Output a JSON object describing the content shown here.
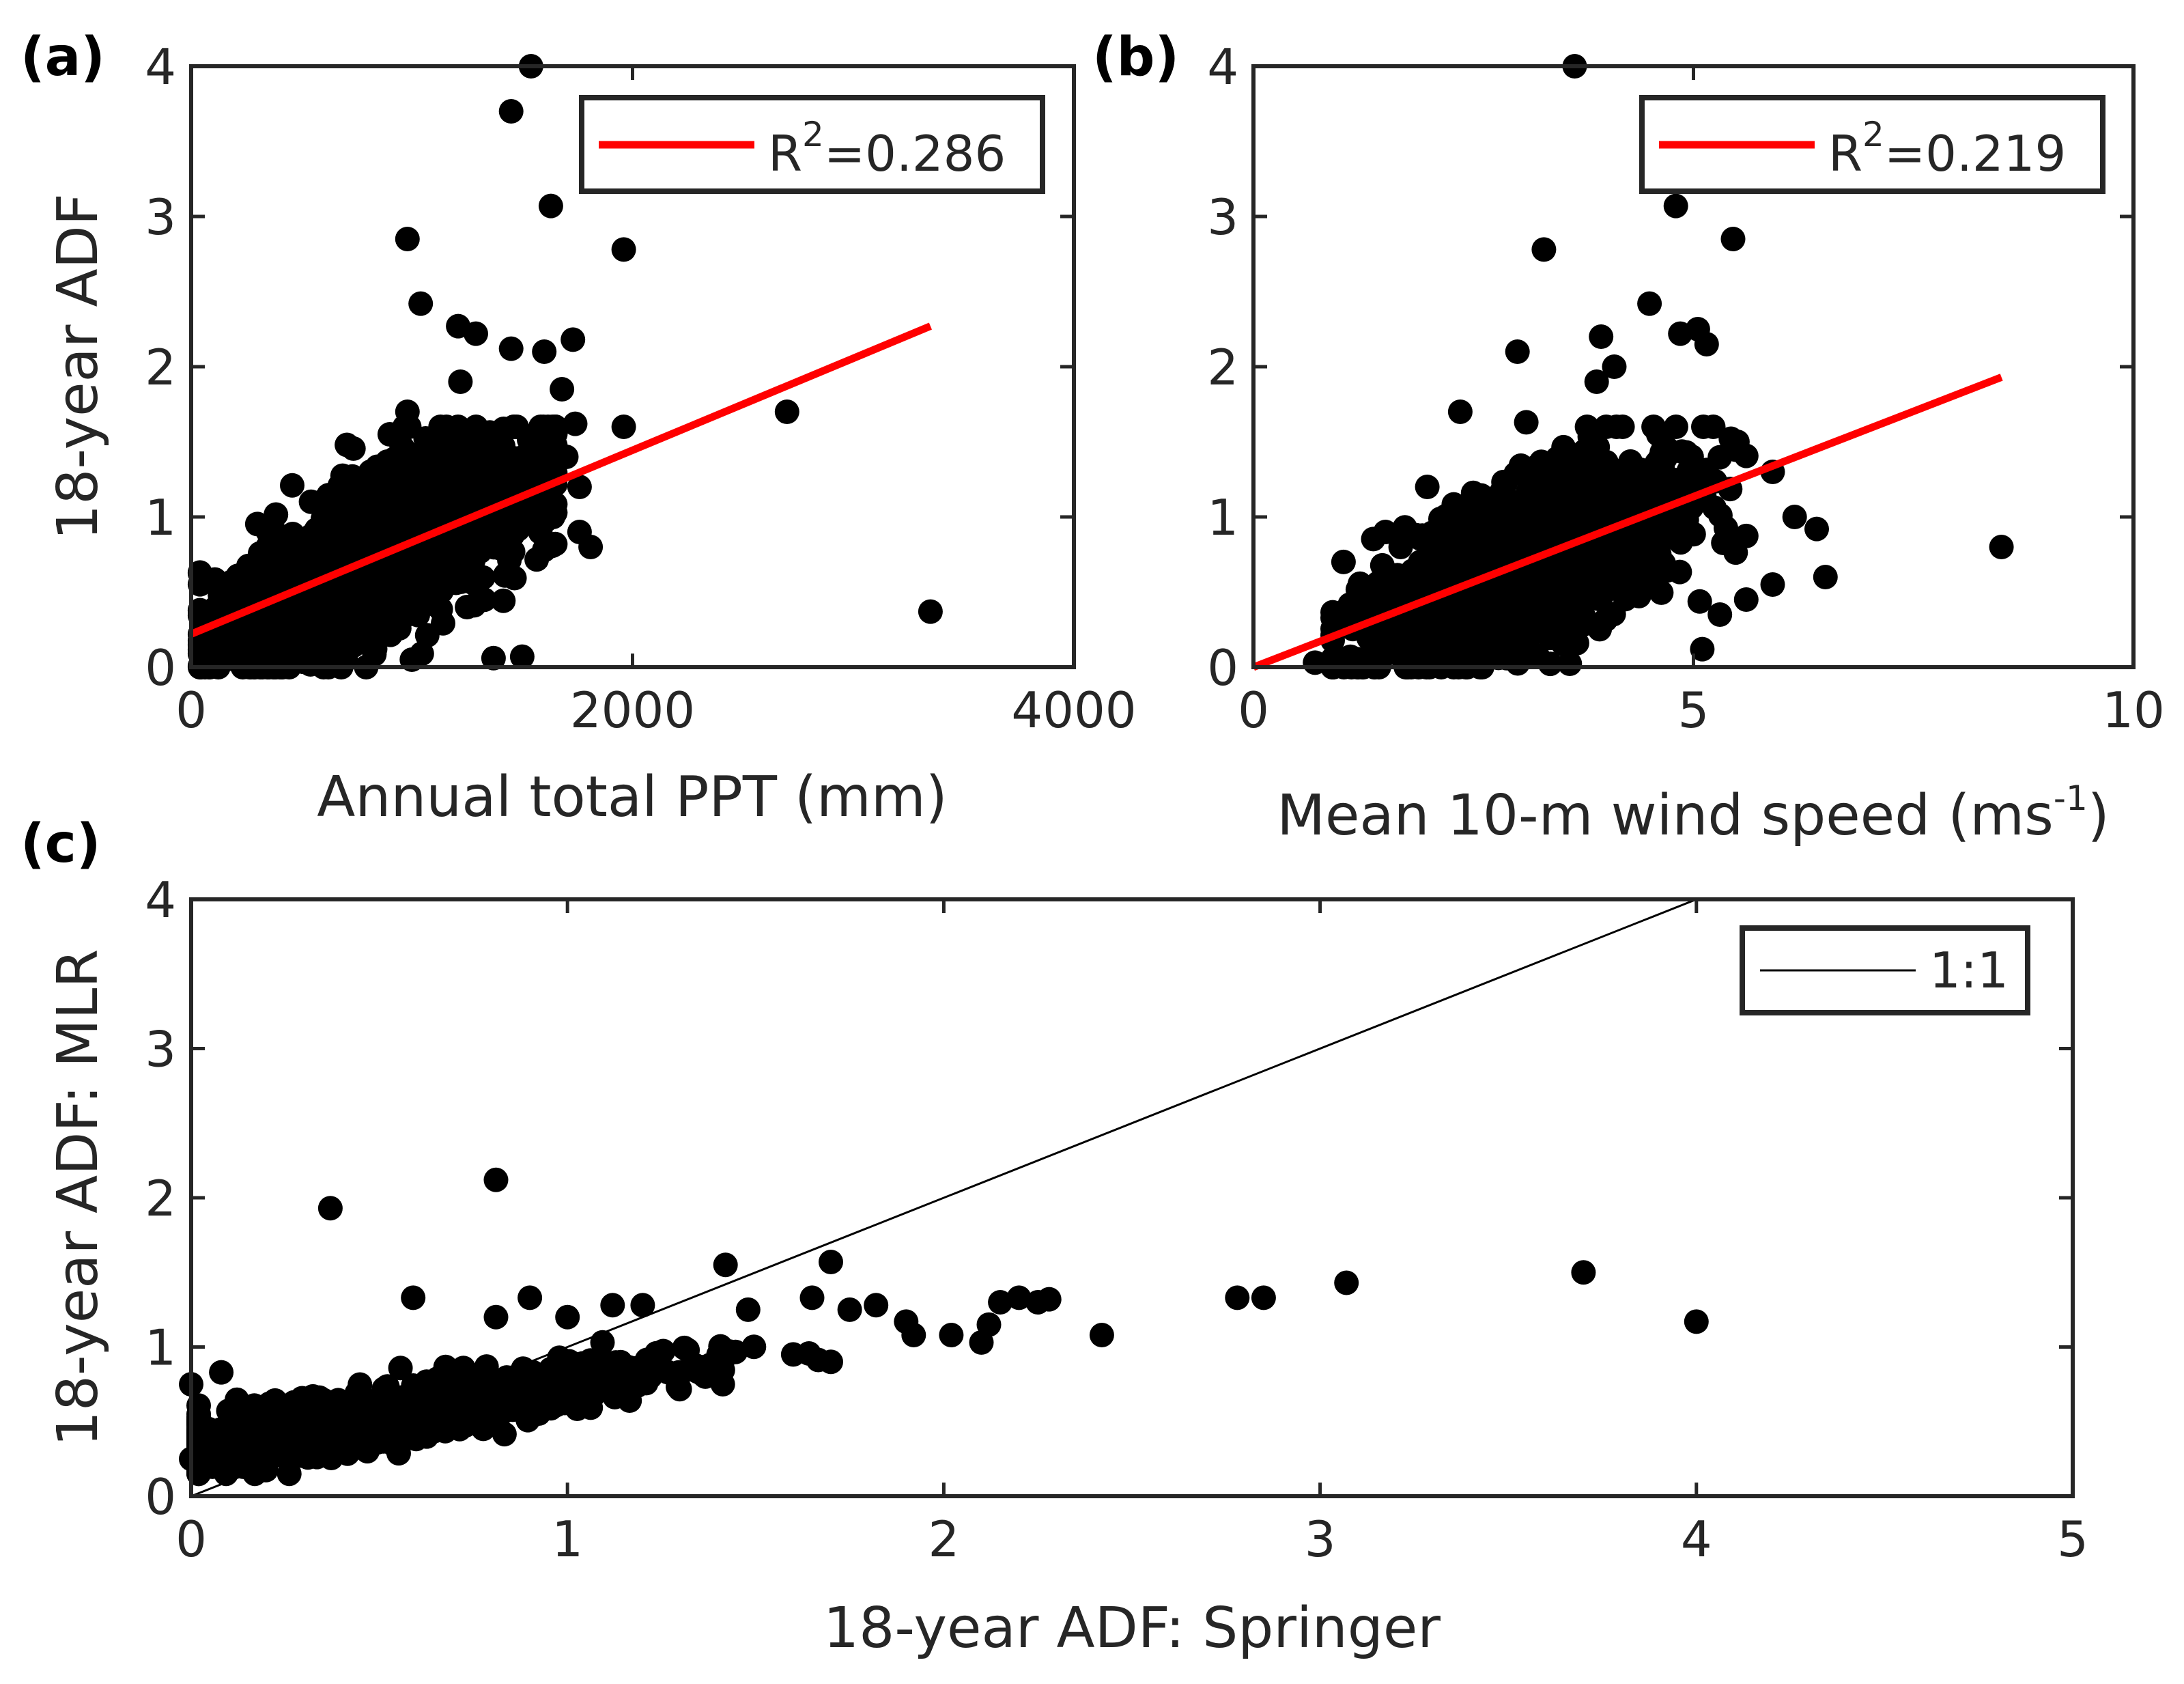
{
  "chart_data": [
    {
      "type": "scatter",
      "panel_label": "(a)",
      "xlabel": "Annual total PPT (mm)",
      "ylabel": "18-year ADF",
      "xlim": [
        0,
        4000
      ],
      "ylim": [
        0,
        4
      ],
      "xticks": [
        0,
        2000,
        4000
      ],
      "yticks": [
        0,
        1,
        2,
        3,
        4
      ],
      "legend": {
        "placement": "top-right",
        "entries": [
          {
            "label_base": "R",
            "label_sup": "2",
            "label_tail": "=0.286",
            "color": "#ff0000"
          }
        ]
      },
      "fit_line": {
        "color": "#ff0000",
        "x": [
          0,
          3350
        ],
        "y": [
          0.22,
          2.27
        ]
      },
      "point_color": "#000000",
      "points": [
        [
          1540,
          4.0
        ],
        [
          1450,
          3.7
        ],
        [
          1630,
          3.07
        ],
        [
          980,
          2.85
        ],
        [
          1960,
          2.78
        ],
        [
          1040,
          2.42
        ],
        [
          1210,
          2.27
        ],
        [
          1290,
          2.22
        ],
        [
          1450,
          2.12
        ],
        [
          1600,
          2.1
        ],
        [
          1730,
          2.18
        ],
        [
          1680,
          1.85
        ],
        [
          2700,
          1.7
        ],
        [
          1960,
          1.6
        ],
        [
          1740,
          1.62
        ],
        [
          1700,
          1.4
        ],
        [
          1760,
          1.2
        ],
        [
          1640,
          1.0
        ],
        [
          1760,
          0.9
        ],
        [
          1810,
          0.8
        ],
        [
          1600,
          0.78
        ],
        [
          3350,
          0.37
        ],
        [
          1500,
          0.07
        ],
        [
          1370,
          0.06
        ],
        [
          1000,
          0.05
        ],
        [
          700,
          0.05
        ],
        [
          450,
          0.07
        ],
        [
          200,
          0.05
        ],
        [
          1250,
          0.4
        ],
        [
          1130,
          1.6
        ],
        [
          1220,
          1.9
        ],
        [
          1370,
          1.55
        ],
        [
          900,
          1.55
        ],
        [
          980,
          1.7
        ]
      ],
      "cloud": {
        "seed": 11,
        "count": 1500,
        "x_mean": 850,
        "x_sd": 360,
        "x_min": 40,
        "x_max": 1650,
        "y_slope": 0.00072,
        "y_intercept": 0.15,
        "y_sd": 0.26,
        "y_min": 0.0,
        "y_max": 1.6
      }
    },
    {
      "type": "scatter",
      "panel_label": "(b)",
      "xlabel_base": "Mean 10-m wind speed (ms",
      "xlabel_sup": "-1",
      "xlabel_tail": ")",
      "xlim": [
        0,
        10
      ],
      "ylim": [
        0,
        4
      ],
      "xticks": [
        0,
        5,
        10
      ],
      "yticks": [
        0,
        1,
        2,
        3,
        4
      ],
      "legend": {
        "placement": "top-right",
        "entries": [
          {
            "label_base": "R",
            "label_sup": "2",
            "label_tail": "=0.219",
            "color": "#ff0000"
          }
        ]
      },
      "fit_line": {
        "color": "#ff0000",
        "x": [
          0,
          8.5
        ],
        "y": [
          0.0,
          1.93
        ]
      },
      "point_color": "#000000",
      "points": [
        [
          3.65,
          4.0
        ],
        [
          4.8,
          3.07
        ],
        [
          3.3,
          2.78
        ],
        [
          5.45,
          2.85
        ],
        [
          4.5,
          2.42
        ],
        [
          3.0,
          2.1
        ],
        [
          4.85,
          2.22
        ],
        [
          5.05,
          2.25
        ],
        [
          5.15,
          2.15
        ],
        [
          3.95,
          2.2
        ],
        [
          2.35,
          1.7
        ],
        [
          4.6,
          1.55
        ],
        [
          5.5,
          1.5
        ],
        [
          5.9,
          1.3
        ],
        [
          6.15,
          1.0
        ],
        [
          6.4,
          0.92
        ],
        [
          8.5,
          0.8
        ],
        [
          6.5,
          0.6
        ],
        [
          5.9,
          0.55
        ],
        [
          5.6,
          0.45
        ],
        [
          5.3,
          0.35
        ],
        [
          5.1,
          0.12
        ],
        [
          0.7,
          0.03
        ],
        [
          1.1,
          0.03
        ],
        [
          3.9,
          1.9
        ],
        [
          3.1,
          1.63
        ],
        [
          4.1,
          2.0
        ]
      ],
      "cloud": {
        "seed": 23,
        "count": 1500,
        "x_mean": 3.05,
        "x_sd": 0.85,
        "x_min": 0.9,
        "x_max": 5.6,
        "y_slope": 0.24,
        "y_intercept": -0.05,
        "y_sd": 0.26,
        "y_min": 0.0,
        "y_max": 1.6
      }
    },
    {
      "type": "scatter",
      "panel_label": "(c)",
      "xlabel": "18-year ADF: Springer",
      "ylabel": "18-year ADF: MLR",
      "xlim": [
        0,
        5
      ],
      "ylim": [
        0,
        4
      ],
      "xticks": [
        0,
        1,
        2,
        3,
        4,
        5
      ],
      "yticks": [
        0,
        1,
        2,
        3,
        4
      ],
      "legend": {
        "placement": "top-right",
        "entries": [
          {
            "label": "1:1",
            "color": "#000000"
          }
        ]
      },
      "one_to_one": {
        "color": "#000000",
        "x": [
          0,
          4
        ],
        "y": [
          0,
          4
        ]
      },
      "point_color": "#000000",
      "points": [
        [
          0.37,
          1.93
        ],
        [
          0.81,
          2.12
        ],
        [
          0.59,
          1.33
        ],
        [
          1.42,
          1.55
        ],
        [
          1.7,
          1.57
        ],
        [
          0.9,
          1.33
        ],
        [
          0.81,
          1.2
        ],
        [
          1.0,
          1.2
        ],
        [
          1.12,
          1.28
        ],
        [
          1.2,
          1.28
        ],
        [
          1.48,
          1.25
        ],
        [
          1.65,
          1.33
        ],
        [
          1.75,
          1.25
        ],
        [
          1.82,
          1.28
        ],
        [
          1.9,
          1.17
        ],
        [
          1.92,
          1.08
        ],
        [
          2.02,
          1.08
        ],
        [
          2.1,
          1.03
        ],
        [
          2.12,
          1.15
        ],
        [
          2.15,
          1.3
        ],
        [
          2.2,
          1.33
        ],
        [
          2.25,
          1.3
        ],
        [
          2.28,
          1.32
        ],
        [
          2.42,
          1.08
        ],
        [
          2.78,
          1.33
        ],
        [
          2.85,
          1.33
        ],
        [
          3.07,
          1.43
        ],
        [
          3.7,
          1.5
        ],
        [
          4.0,
          1.17
        ],
        [
          0.0,
          0.75
        ],
        [
          0.08,
          0.83
        ],
        [
          0.02,
          0.55
        ],
        [
          0.0,
          0.25
        ],
        [
          1.22,
          0.8
        ],
        [
          1.3,
          0.82
        ],
        [
          1.6,
          0.95
        ],
        [
          1.7,
          0.9
        ]
      ],
      "cloud": {
        "seed": 37,
        "count": 950,
        "x_mean": 0.45,
        "x_sd": 0.42,
        "x_min": 0.02,
        "x_max": 1.9,
        "y_slope": 0.42,
        "y_intercept": 0.32,
        "y_sd": 0.09,
        "y_min": 0.15,
        "y_max": 1.25
      }
    }
  ]
}
